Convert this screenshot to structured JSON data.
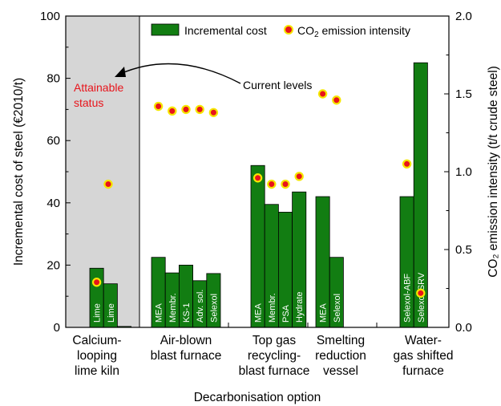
{
  "chart_data": {
    "type": "bar",
    "xlabel": "Decarbonisation option",
    "ylabel": "Incremental cost of steel (€2010/t)",
    "y2label": "CO₂ emission intensity (t/t crude steel)",
    "ylim": [
      0,
      100
    ],
    "y2lim": [
      0,
      2.0
    ],
    "yticks": [
      "0",
      "20",
      "40",
      "60",
      "80",
      "100"
    ],
    "y2ticks": [
      "0.0",
      "0.5",
      "1.0",
      "1.5",
      "2.0"
    ],
    "legend": {
      "bar_label": "Incremental cost",
      "dot_label_prefix": "CO",
      "dot_label_sub": "2",
      "dot_label_suffix": " emission intensity",
      "placement": "top"
    },
    "groups": [
      {
        "name_lines": [
          "Calcium-",
          "looping",
          "lime kiln"
        ],
        "bars": [
          {
            "label": "Lime",
            "cost": 19,
            "co2": 0.29
          },
          {
            "label": "Lime",
            "cost": 14,
            "co2": null
          },
          {
            "label": "",
            "cost": 0.3,
            "co2": null
          }
        ],
        "extra_dots": [
          0.92
        ]
      },
      {
        "name_lines": [
          "Air-blown",
          "blast furnace"
        ],
        "bars": [
          {
            "label": "MEA",
            "cost": 22.5,
            "co2": 1.42
          },
          {
            "label": "Membr.",
            "cost": 17.5,
            "co2": 1.39
          },
          {
            "label": "KS-1",
            "cost": 20,
            "co2": 1.4
          },
          {
            "label": "Adv. sol.",
            "cost": 15,
            "co2": 1.4
          },
          {
            "label": "Selexol",
            "cost": 17.3,
            "co2": 1.38
          }
        ],
        "extra_dots": []
      },
      {
        "name_lines": [
          "Top gas",
          "recycling-",
          "blast furnace"
        ],
        "bars": [
          {
            "label": "MEA",
            "cost": 52,
            "co2": 0.96
          },
          {
            "label": "Membr.",
            "cost": 39.5,
            "co2": 0.92
          },
          {
            "label": "PSA",
            "cost": 37,
            "co2": 0.92
          },
          {
            "label": "Hydrate",
            "cost": 43.5,
            "co2": 0.97
          }
        ],
        "extra_dots": []
      },
      {
        "name_lines": [
          "Smelting",
          "reduction",
          "vessel"
        ],
        "bars": [
          {
            "label": "MEA",
            "cost": 42,
            "co2": 1.5
          },
          {
            "label": "Selexol",
            "cost": 22.5,
            "co2": 1.46
          }
        ],
        "extra_dots": []
      },
      {
        "name_lines": [
          "Water-",
          "gas shifted",
          "furnace"
        ],
        "bars": [
          {
            "label": "Selexol-ABF",
            "cost": 42,
            "co2": 1.05
          },
          {
            "label": "Selexol-SRV",
            "cost": 85,
            "co2": 0.22
          }
        ],
        "extra_dots": []
      }
    ],
    "annotations": {
      "attainable_line1": "Attainable",
      "attainable_line2": "status",
      "current_levels": "Current levels"
    },
    "colors": {
      "bar": "#127d12",
      "bar_edge": "#000000",
      "dot_fill": "#e8141b",
      "dot_edge": "#f5e600",
      "shade": "#d6d6d6",
      "annotation_red": "#e8141b"
    }
  }
}
